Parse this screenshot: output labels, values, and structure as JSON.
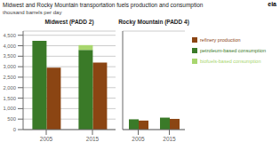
{
  "title": "Midwest and Rocky Mountain transportation fuels production and consumption",
  "subtitle": "thousand barrels per day",
  "annotations": [
    "eia"
  ],
  "chart_data": [
    {
      "type": "bar",
      "title": "Midwest (PADD 2)",
      "categories": [
        "2005",
        "2015"
      ],
      "series": [
        {
          "name": "refinery production",
          "color": "#8B4513",
          "values": [
            2950,
            3200
          ]
        },
        {
          "name": "petroleum-based consumption",
          "color": "#3a7a28",
          "values": [
            4230,
            3800
          ],
          "stacked": true
        },
        {
          "name": "biofuels-based consumption",
          "color": "#a8d66e",
          "values": [
            0,
            230
          ],
          "stacked": true
        }
      ],
      "ylim": [
        0,
        4700
      ],
      "yticks": [
        0,
        500,
        {
          "value": 1000,
          "label": "1,000"
        },
        {
          "value": 1500,
          "label": "1,500"
        },
        {
          "value": 2000,
          "label": "2,000"
        },
        {
          "value": 2500,
          "label": "2,500"
        },
        {
          "value": 3000,
          "label": "3,000"
        },
        {
          "value": 3500,
          "label": "3,500"
        },
        {
          "value": 4000,
          "label": "4,000"
        },
        {
          "value": 4500,
          "label": "4,500"
        }
      ],
      "grid": true
    },
    {
      "type": "bar",
      "title": "Rocky Mountain (PADD 4)",
      "categories": [
        "2005",
        "2015"
      ],
      "series": [
        {
          "name": "refinery production",
          "color": "#8B4513",
          "values": [
            430,
            510
          ]
        },
        {
          "name": "petroleum-based consumption",
          "color": "#3a7a28",
          "values": [
            490,
            570
          ],
          "stacked": true
        },
        {
          "name": "biofuels-based consumption",
          "color": "#a8d66e",
          "values": [
            0,
            0
          ],
          "stacked": true
        }
      ],
      "ylim": [
        0,
        4700
      ],
      "yticks": [
        0,
        500,
        {
          "value": 1000,
          "label": "1,000"
        },
        {
          "value": 1500,
          "label": "1,500"
        },
        {
          "value": 2000,
          "label": "2,000"
        },
        {
          "value": 2500,
          "label": "2,500"
        },
        {
          "value": 3000,
          "label": "3,000"
        },
        {
          "value": 3500,
          "label": "3,500"
        },
        {
          "value": 4000,
          "label": "4,000"
        },
        {
          "value": 4500,
          "label": "4,500"
        }
      ],
      "grid": true,
      "tick_labels": "x",
      "legend": "right"
    }
  ]
}
